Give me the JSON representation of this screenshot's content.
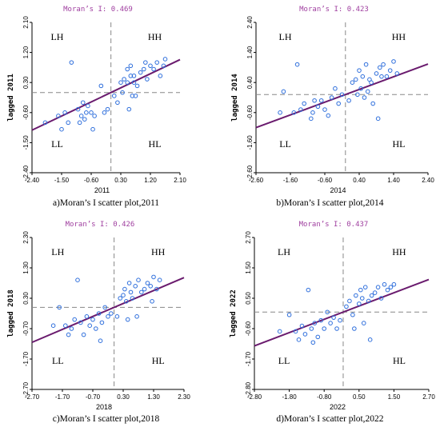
{
  "chart_data": [
    {
      "type": "scatter",
      "moran": "Moran’s I: 0.469",
      "xlabel": "2011",
      "ylabel": "lagged 2011",
      "caption": "a)Moran’s I scatter plot,2011",
      "quadrants": [
        "LH",
        "HH",
        "LL",
        "HL"
      ],
      "xticks": [
        "-2.40",
        "-1.50",
        "-0.60",
        "0.30",
        "1.20",
        "2.10"
      ],
      "yticks": [
        "2.10",
        "1.20",
        "0.30",
        "-0.60",
        "-1.50",
        "-2.40"
      ],
      "xlim": [
        -2.4,
        2.1
      ],
      "ylim": [
        -2.4,
        2.1
      ],
      "slope": 0.469,
      "x": [
        -2.0,
        -1.6,
        -1.5,
        -1.4,
        -1.3,
        -1.2,
        -1.0,
        -0.95,
        -0.9,
        -0.85,
        -0.8,
        -0.75,
        -0.7,
        -0.6,
        -0.55,
        -0.5,
        -0.3,
        -0.2,
        -0.1,
        0.1,
        0.2,
        0.3,
        0.4,
        0.5,
        0.5,
        0.55,
        0.6,
        0.6,
        0.7,
        0.7,
        0.75,
        0.8,
        0.9,
        1.0,
        1.05,
        1.1,
        1.2,
        1.3,
        1.4,
        1.5,
        1.6,
        1.65,
        0.65,
        0.35
      ],
      "y": [
        -0.9,
        -0.7,
        -1.1,
        -0.6,
        -0.9,
        0.9,
        -0.5,
        -0.9,
        -0.7,
        -0.3,
        -0.8,
        -0.6,
        -0.4,
        -0.6,
        -1.1,
        -0.7,
        0.2,
        -0.6,
        -0.5,
        -0.1,
        -0.3,
        0.3,
        0.4,
        0.7,
        0.3,
        -0.5,
        0.8,
        0.5,
        0.5,
        0.3,
        -0.1,
        0.2,
        0.6,
        0.7,
        0.9,
        0.4,
        0.8,
        0.7,
        0.9,
        0.5,
        0.8,
        1.0,
        -0.1,
        0.0
      ]
    },
    {
      "type": "scatter",
      "moran": "Moran’s I: 0.423",
      "xlabel": "2014",
      "ylabel": "lagged 2014",
      "caption": "b)Moran’s I scatter plot,2014",
      "quadrants": [
        "LH",
        "HH",
        "LL",
        "HL"
      ],
      "xticks": [
        "-2.60",
        "-1.60",
        "-0.60",
        "0.40",
        "1.40",
        "2.40"
      ],
      "yticks": [
        "2.40",
        "1.40",
        "0.40",
        "-0.60",
        "-1.60",
        "-2.60"
      ],
      "xlim": [
        -2.6,
        2.4
      ],
      "ylim": [
        -2.6,
        2.4
      ],
      "slope": 0.423,
      "x": [
        -1.9,
        -1.8,
        -1.5,
        -1.4,
        -1.3,
        -1.2,
        -1.0,
        -0.95,
        -0.9,
        -0.8,
        -0.7,
        -0.6,
        -0.5,
        -0.4,
        -0.3,
        -0.2,
        -0.1,
        0.1,
        0.2,
        0.3,
        0.4,
        0.45,
        0.5,
        0.6,
        0.65,
        0.7,
        0.75,
        0.8,
        0.9,
        1.0,
        1.05,
        1.1,
        1.2,
        1.3,
        1.4,
        1.5,
        0.55,
        0.35,
        0.95
      ],
      "y": [
        -0.6,
        0.1,
        -0.6,
        1.0,
        -0.5,
        -0.3,
        -0.8,
        -0.6,
        -0.2,
        -0.4,
        -0.2,
        -0.5,
        -0.7,
        -0.1,
        0.2,
        -0.3,
        0.0,
        -0.2,
        0.4,
        0.5,
        0.8,
        0.2,
        0.6,
        1.0,
        0.1,
        0.5,
        0.4,
        -0.3,
        0.7,
        0.9,
        0.6,
        1.0,
        0.6,
        0.8,
        1.1,
        0.7,
        -0.1,
        0.0,
        -0.8
      ]
    },
    {
      "type": "scatter",
      "moran": "Moran’s I: 0.426",
      "xlabel": "2018",
      "ylabel": "lagged 2018",
      "caption": "c)Moran’s I scatter plot,2018",
      "quadrants": [
        "LH",
        "HH",
        "LL",
        "HL"
      ],
      "xticks": [
        "-2.70",
        "-1.70",
        "-0.70",
        "0.30",
        "1.30",
        "2.30"
      ],
      "yticks": [
        "2.30",
        "1.30",
        "0.30",
        "-0.70",
        "-1.70",
        "-2.70"
      ],
      "xlim": [
        -2.7,
        2.3
      ],
      "ylim": [
        -2.7,
        2.3
      ],
      "slope": 0.426,
      "x": [
        -2.0,
        -1.8,
        -1.6,
        -1.5,
        -1.4,
        -1.3,
        -1.2,
        -1.1,
        -1.0,
        -0.9,
        -0.8,
        -0.7,
        -0.6,
        -0.5,
        -0.45,
        -0.4,
        -0.3,
        -0.2,
        -0.1,
        0.1,
        0.2,
        0.3,
        0.35,
        0.4,
        0.5,
        0.55,
        0.6,
        0.7,
        0.8,
        0.9,
        1.0,
        1.1,
        1.2,
        1.3,
        1.4,
        1.5,
        0.75,
        0.45,
        1.25
      ],
      "y": [
        -0.6,
        0.0,
        -0.6,
        -0.9,
        -0.7,
        -0.4,
        0.9,
        -0.5,
        -0.9,
        -0.3,
        -0.6,
        -0.4,
        -0.7,
        -0.2,
        -1.1,
        -0.5,
        0.0,
        -0.3,
        -0.2,
        -0.3,
        0.3,
        0.4,
        0.6,
        0.2,
        0.8,
        0.5,
        0.3,
        0.7,
        0.9,
        0.5,
        0.6,
        0.8,
        0.7,
        1.0,
        0.6,
        0.9,
        -0.3,
        -0.4,
        0.2
      ]
    },
    {
      "type": "scatter",
      "moran": "Moran’s I: 0.437",
      "xlabel": "2022",
      "ylabel": "lagged 2022",
      "caption": "d)Moran’s I scatter plot,2022",
      "quadrants": [
        "LH",
        "HH",
        "LL",
        "HL"
      ],
      "xticks": [
        "-2.80",
        "-1.80",
        "-0.80",
        "0.50",
        "1.50",
        "2.70"
      ],
      "yticks": [
        "2.70",
        "1.50",
        "0.50",
        "-0.60",
        "-1.70",
        "-2.80"
      ],
      "xlim": [
        -2.8,
        2.7
      ],
      "ylim": [
        -2.8,
        2.7
      ],
      "slope": 0.437,
      "x": [
        -2.0,
        -1.7,
        -1.5,
        -1.4,
        -1.3,
        -1.2,
        -1.1,
        -1.0,
        -0.9,
        -0.8,
        -0.7,
        -0.6,
        -0.5,
        -0.4,
        -0.3,
        -0.2,
        -0.1,
        0.1,
        0.2,
        0.3,
        0.4,
        0.5,
        0.55,
        0.6,
        0.7,
        0.8,
        0.9,
        1.0,
        1.1,
        1.2,
        1.3,
        1.4,
        1.5,
        1.6,
        0.65,
        0.35,
        0.85,
        -0.95
      ],
      "y": [
        -0.7,
        -0.1,
        -0.7,
        -1.0,
        -0.5,
        -0.8,
        0.8,
        -0.6,
        -0.4,
        -0.9,
        -0.3,
        -0.6,
        0.0,
        -0.4,
        -0.2,
        -0.6,
        -0.3,
        0.2,
        0.4,
        -0.1,
        0.6,
        0.3,
        0.8,
        0.5,
        0.9,
        0.4,
        0.6,
        0.7,
        0.9,
        0.5,
        1.0,
        0.8,
        0.9,
        1.0,
        -0.4,
        -0.6,
        -1.0,
        -1.1
      ]
    }
  ]
}
